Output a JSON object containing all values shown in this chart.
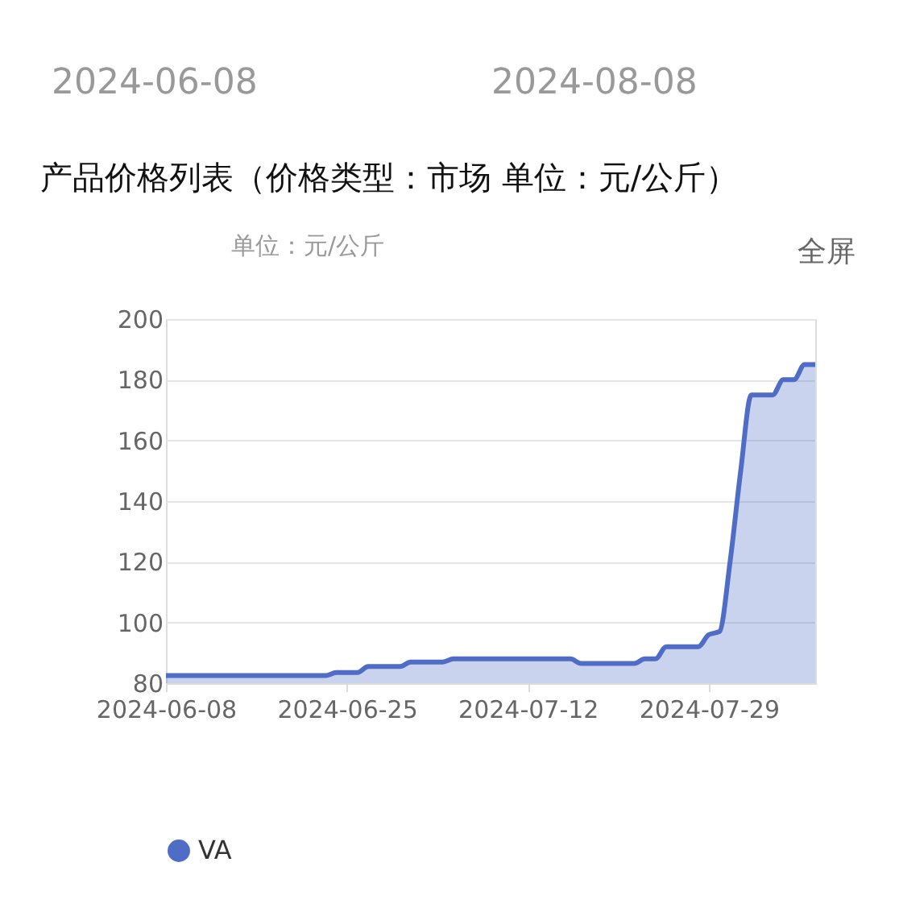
{
  "chart_data": {
    "type": "area",
    "title": "产品价格列表（价格类型：市场 单位：元/公斤）",
    "ylabel": "单位：元/公斤",
    "annotations": [
      "2024-06-08",
      "2024-08-08",
      "全屏"
    ],
    "x": [
      "2024-06-08",
      "2024-06-23",
      "2024-06-24",
      "2024-06-26",
      "2024-06-27",
      "2024-06-30",
      "2024-07-01",
      "2024-07-04",
      "2024-07-05",
      "2024-07-16",
      "2024-07-17",
      "2024-07-22",
      "2024-07-23",
      "2024-07-24",
      "2024-07-25",
      "2024-07-28",
      "2024-07-29",
      "2024-07-30",
      "2024-07-31",
      "2024-08-01",
      "2024-08-02",
      "2024-08-04",
      "2024-08-05",
      "2024-08-06",
      "2024-08-07",
      "2024-08-08"
    ],
    "series": [
      {
        "name": "VA",
        "color": "#4f6cc6",
        "values": [
          82.5,
          82.5,
          83.5,
          83.5,
          85.5,
          85.5,
          87,
          87,
          88,
          88,
          86.5,
          86.5,
          88,
          88,
          92,
          92,
          96,
          97,
          120,
          150,
          175,
          175,
          180,
          180,
          185,
          185
        ]
      }
    ],
    "xlim": [
      "2024-06-08",
      "2024-08-08"
    ],
    "xticks": [
      "2024-06-08",
      "2024-06-25",
      "2024-07-12",
      "2024-07-29"
    ],
    "ylim": [
      80,
      200
    ],
    "yticks": [
      80,
      100,
      120,
      140,
      160,
      180,
      200
    ],
    "grid": "y",
    "legend": "bottom"
  }
}
